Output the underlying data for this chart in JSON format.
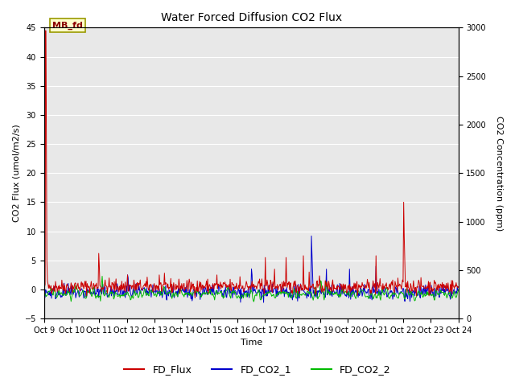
{
  "title": "Water Forced Diffusion CO2 Flux",
  "xlabel": "Time",
  "ylabel_left": "CO2 Flux (umol/m2/s)",
  "ylabel_right": "CO2 Concentration (ppm)",
  "ylim_left": [
    -5,
    45
  ],
  "ylim_right": [
    0,
    3000
  ],
  "yticks_left": [
    -5,
    0,
    5,
    10,
    15,
    20,
    25,
    30,
    35,
    40,
    45
  ],
  "yticks_right": [
    0,
    500,
    1000,
    1500,
    2000,
    2500,
    3000
  ],
  "xtick_labels": [
    "Oct 9",
    "Oct 10",
    "Oct 11",
    "Oct 12",
    "Oct 13",
    "Oct 14",
    "Oct 15",
    "Oct 16",
    "Oct 17",
    "Oct 18",
    "Oct 19",
    "Oct 20",
    "Oct 21",
    "Oct 22",
    "Oct 23",
    "Oct 24"
  ],
  "annotation_text": "MB_fd",
  "flux_color": "#cc0000",
  "co2_1_color": "#0000cc",
  "co2_2_color": "#00bb00",
  "background_color": "#e8e8e8",
  "grid_color": "#ffffff",
  "legend_labels": [
    "FD_Flux",
    "FD_CO2_1",
    "FD_CO2_2"
  ],
  "legend_colors": [
    "#cc0000",
    "#0000cc",
    "#00bb00"
  ]
}
